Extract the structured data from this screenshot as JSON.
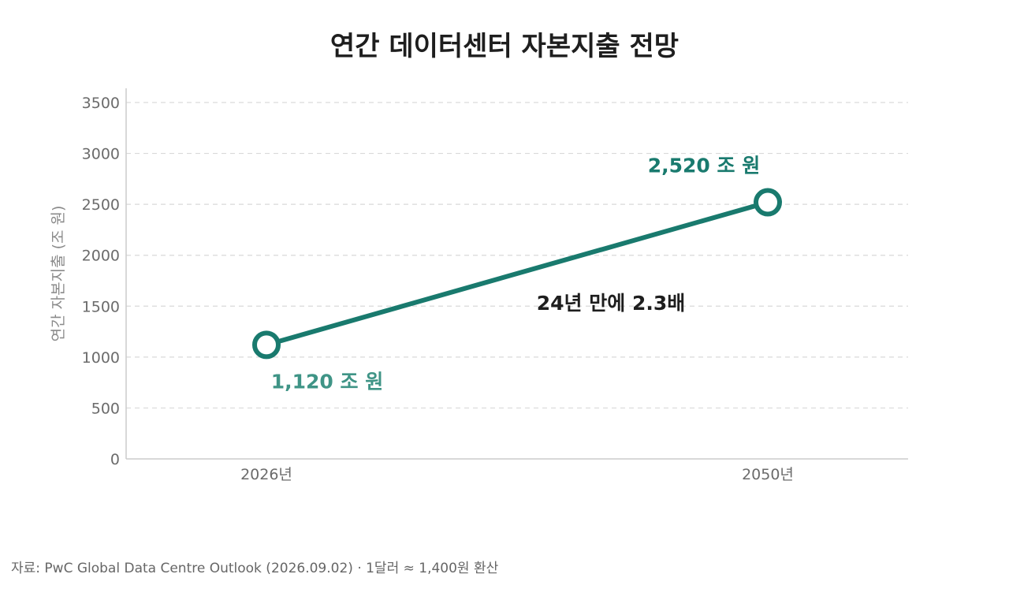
{
  "chart_data": {
    "type": "line",
    "title": "연간 데이터센터 자본지출 전망",
    "ylabel": "연간 자본지출 (조 원)",
    "xlabel": "",
    "categories": [
      "2026년",
      "2050년"
    ],
    "x": [
      2026,
      2050
    ],
    "series": [
      {
        "values": [
          1120,
          2520
        ],
        "color": "#197a6e"
      }
    ],
    "data_labels": [
      "1,120 조 원",
      "2,520 조 원"
    ],
    "annotation": "24년 만에 2.3배",
    "ylim": [
      0,
      3500
    ],
    "yticks": [
      0,
      500,
      1000,
      1500,
      2000,
      2500,
      3000,
      3500
    ],
    "grid": true,
    "legend": "none"
  },
  "source": "자료: PwC Global Data Centre Outlook (2026.09.02) · 1달러 ≈ 1,400원 환산",
  "colors": {
    "line": "#197a6e",
    "grid": "#d9d9d9",
    "axis": "#cccccc"
  }
}
